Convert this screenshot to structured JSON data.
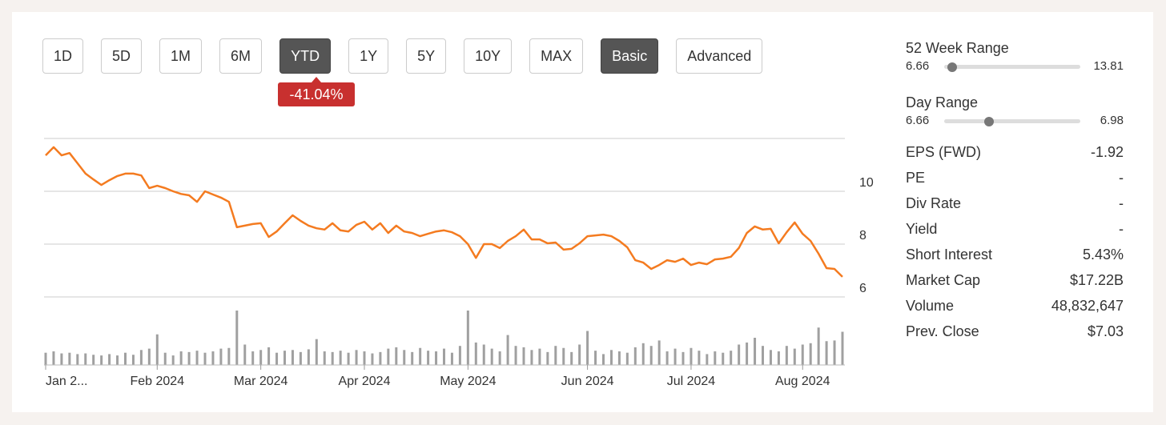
{
  "range_buttons": [
    {
      "label": "1D",
      "active": false
    },
    {
      "label": "5D",
      "active": false
    },
    {
      "label": "1M",
      "active": false
    },
    {
      "label": "6M",
      "active": false
    },
    {
      "label": "YTD",
      "active": true
    },
    {
      "label": "1Y",
      "active": false
    },
    {
      "label": "5Y",
      "active": false
    },
    {
      "label": "10Y",
      "active": false
    },
    {
      "label": "MAX",
      "active": false
    },
    {
      "label": "Basic",
      "active": true
    },
    {
      "label": "Advanced",
      "active": false
    }
  ],
  "change_badge": "-41.04%",
  "ranges": [
    {
      "label": "52 Week Range",
      "low": 6.66,
      "high": 13.81
    },
    {
      "label": "Day Range",
      "low": 6.66,
      "high": 6.98
    }
  ],
  "stats": [
    {
      "label": "EPS (FWD)",
      "value": "-1.92"
    },
    {
      "label": "PE",
      "value": "-"
    },
    {
      "label": "Div Rate",
      "value": "-"
    },
    {
      "label": "Yield",
      "value": "-"
    },
    {
      "label": "Short Interest",
      "value": "5.43%"
    },
    {
      "label": "Market Cap",
      "value": "$17.22B"
    },
    {
      "label": "Volume",
      "value": "48,832,647"
    },
    {
      "label": "Prev. Close",
      "value": "$7.03"
    }
  ],
  "chart_data": {
    "type": "line",
    "color": "#f47b20",
    "ylim": [
      6,
      12
    ],
    "yticks": [
      6,
      8,
      10
    ],
    "grid": true,
    "categories": [
      "Jan 2...",
      null,
      null,
      null,
      null,
      null,
      null,
      null,
      null,
      null,
      null,
      null,
      null,
      null,
      "Feb 2024",
      null,
      null,
      null,
      null,
      null,
      null,
      null,
      null,
      null,
      null,
      null,
      null,
      "Mar 2024",
      null,
      null,
      null,
      null,
      null,
      null,
      null,
      null,
      null,
      null,
      null,
      null,
      "Apr 2024",
      null,
      null,
      null,
      null,
      null,
      null,
      null,
      null,
      null,
      null,
      null,
      null,
      "May 2024",
      null,
      null,
      null,
      null,
      null,
      null,
      null,
      null,
      null,
      null,
      null,
      null,
      null,
      null,
      "Jun 2024",
      null,
      null,
      null,
      null,
      null,
      null,
      null,
      null,
      null,
      null,
      null,
      null,
      "Jul 2024",
      null,
      null,
      null,
      null,
      null,
      null,
      null,
      null,
      null,
      null,
      null,
      null,
      null,
      "Aug 2024",
      null,
      null,
      null,
      null,
      null
    ],
    "values": [
      11.36,
      11.67,
      11.36,
      11.45,
      11.06,
      10.67,
      10.45,
      10.24,
      10.42,
      10.58,
      10.67,
      10.67,
      10.6,
      10.12,
      10.21,
      10.12,
      10,
      9.9,
      9.85,
      9.6,
      10,
      9.88,
      9.76,
      9.6,
      8.64,
      8.7,
      8.76,
      8.79,
      8.27,
      8.48,
      8.79,
      9.09,
      8.88,
      8.7,
      8.6,
      8.55,
      8.79,
      8.52,
      8.48,
      8.73,
      8.85,
      8.55,
      8.79,
      8.42,
      8.7,
      8.48,
      8.42,
      8.3,
      8.39,
      8.48,
      8.52,
      8.45,
      8.3,
      8.0,
      7.48,
      8,
      8,
      7.85,
      8.12,
      8.3,
      8.55,
      8.18,
      8.18,
      8.03,
      8.06,
      7.79,
      7.82,
      8.03,
      8.3,
      8.33,
      8.36,
      8.3,
      8.12,
      7.88,
      7.39,
      7.3,
      7.06,
      7.21,
      7.39,
      7.33,
      7.45,
      7.21,
      7.3,
      7.24,
      7.42,
      7.45,
      7.52,
      7.85,
      8.42,
      8.67,
      8.55,
      8.58,
      8.03,
      8.45,
      8.82,
      8.39,
      8.12,
      7.64,
      7.09,
      7.06,
      6.76
    ],
    "volume": {
      "color": "#a0a0a0",
      "ylim": [
        0,
        100
      ],
      "values": [
        18,
        20,
        17,
        18,
        16,
        17,
        15,
        14,
        16,
        14,
        18,
        15,
        22,
        24,
        45,
        18,
        14,
        20,
        19,
        21,
        18,
        20,
        24,
        25,
        80,
        30,
        20,
        22,
        26,
        18,
        21,
        22,
        19,
        23,
        38,
        20,
        19,
        21,
        18,
        22,
        20,
        17,
        19,
        24,
        26,
        22,
        19,
        25,
        21,
        20,
        24,
        18,
        28,
        80,
        33,
        30,
        24,
        20,
        44,
        28,
        26,
        22,
        24,
        19,
        28,
        25,
        19,
        30,
        50,
        21,
        16,
        22,
        20,
        18,
        26,
        32,
        28,
        36,
        20,
        24,
        19,
        25,
        21,
        16,
        20,
        18,
        21,
        30,
        33,
        40,
        28,
        22,
        20,
        28,
        24,
        30,
        32,
        55,
        35,
        36,
        48.8
      ]
    }
  }
}
